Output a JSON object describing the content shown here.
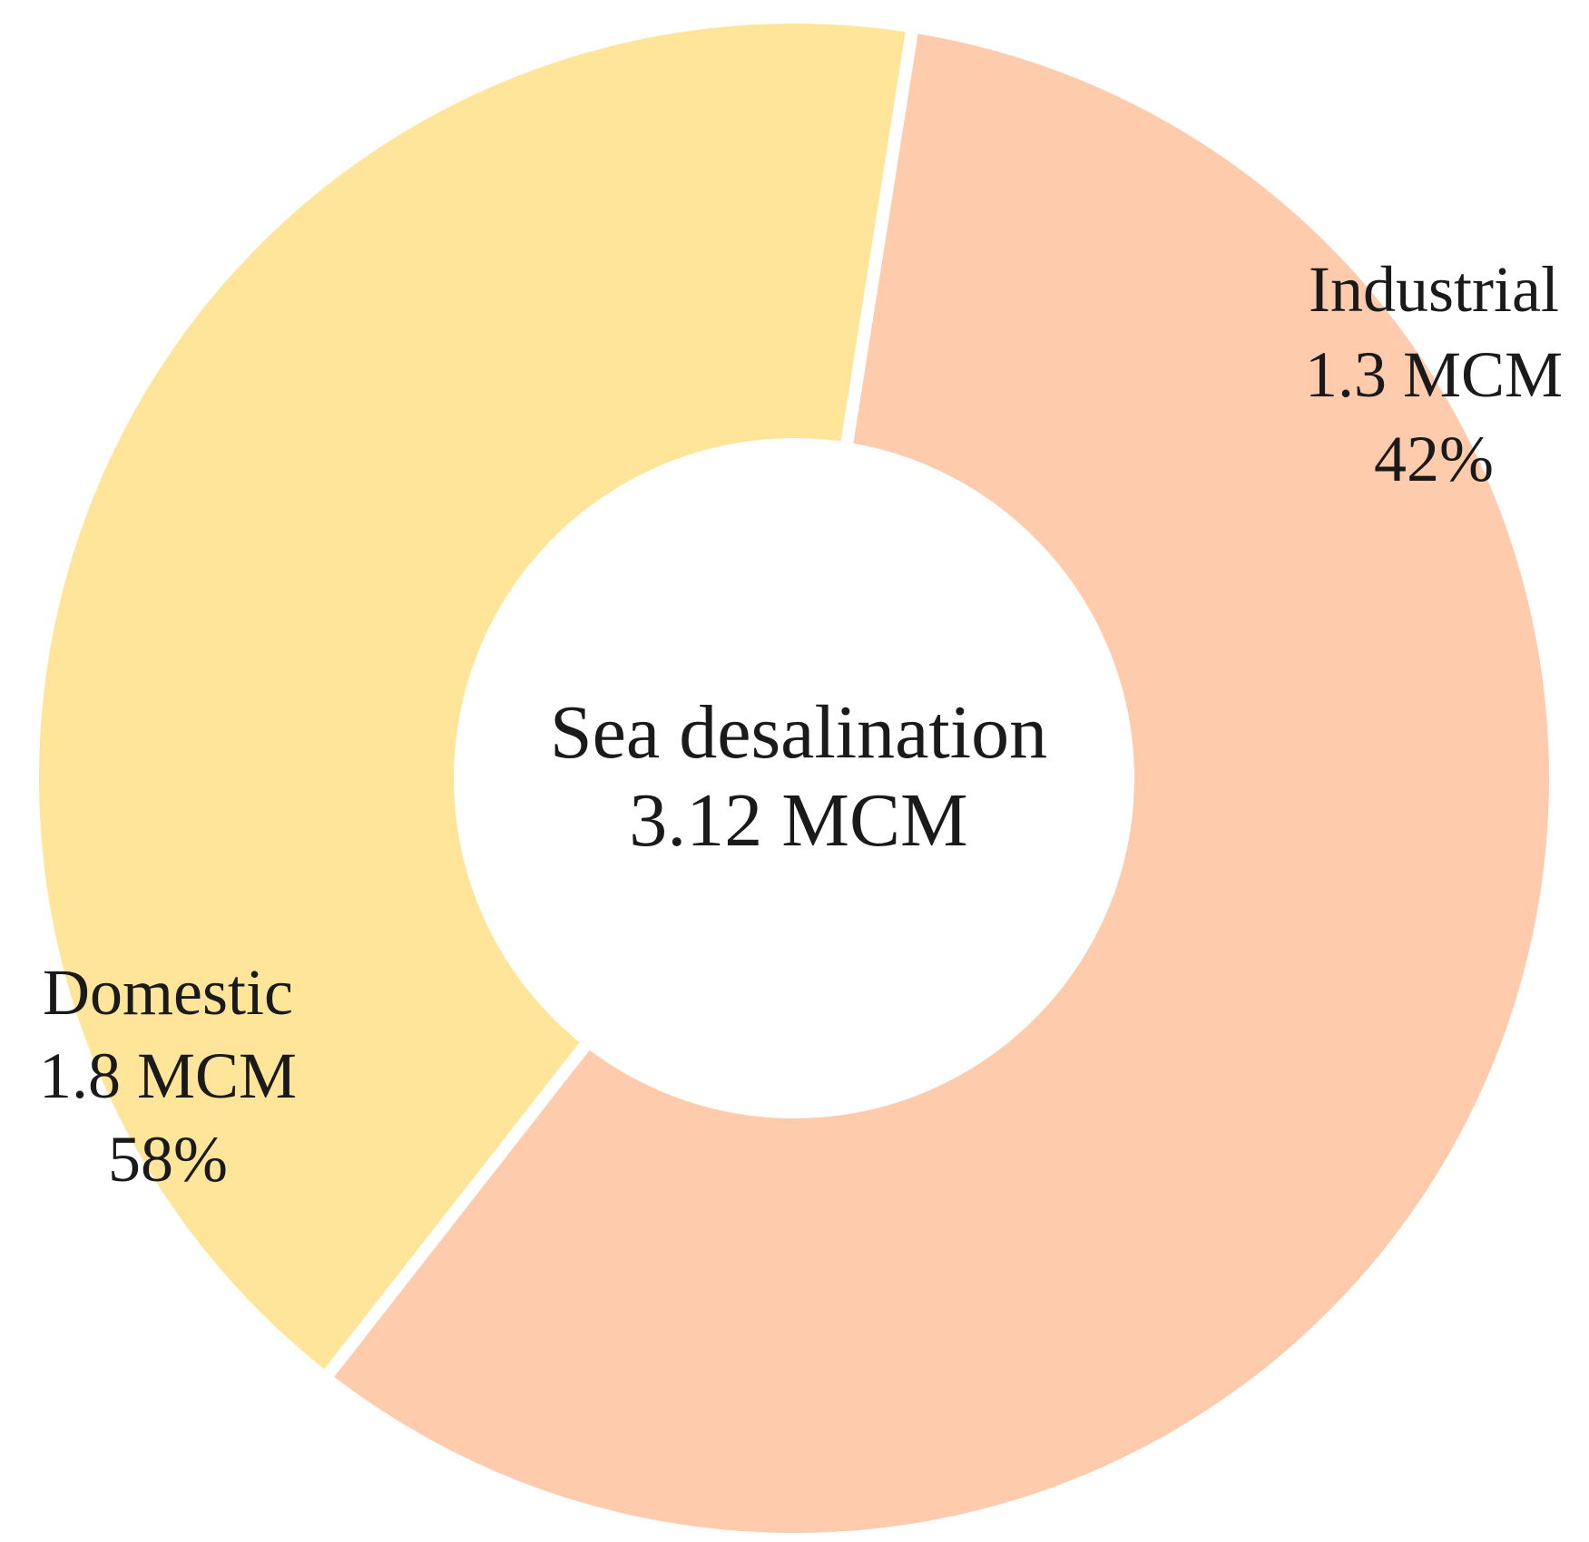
{
  "chart_data": {
    "type": "pie",
    "style": "donut",
    "center_label": {
      "line1": "Sea desalination",
      "line2": "3.12 MCM"
    },
    "slices": [
      {
        "label": "Industrial",
        "value_text": "1.3 MCM",
        "percent_text": "42%",
        "value": 1.3,
        "percent": 42,
        "color": "#FEE599"
      },
      {
        "label": "Domestic",
        "value_text": "1.8 MCM",
        "percent_text": "58%",
        "value": 1.8,
        "percent": 58,
        "color": "#FECBAC"
      }
    ],
    "background": "#FFFFFF"
  }
}
